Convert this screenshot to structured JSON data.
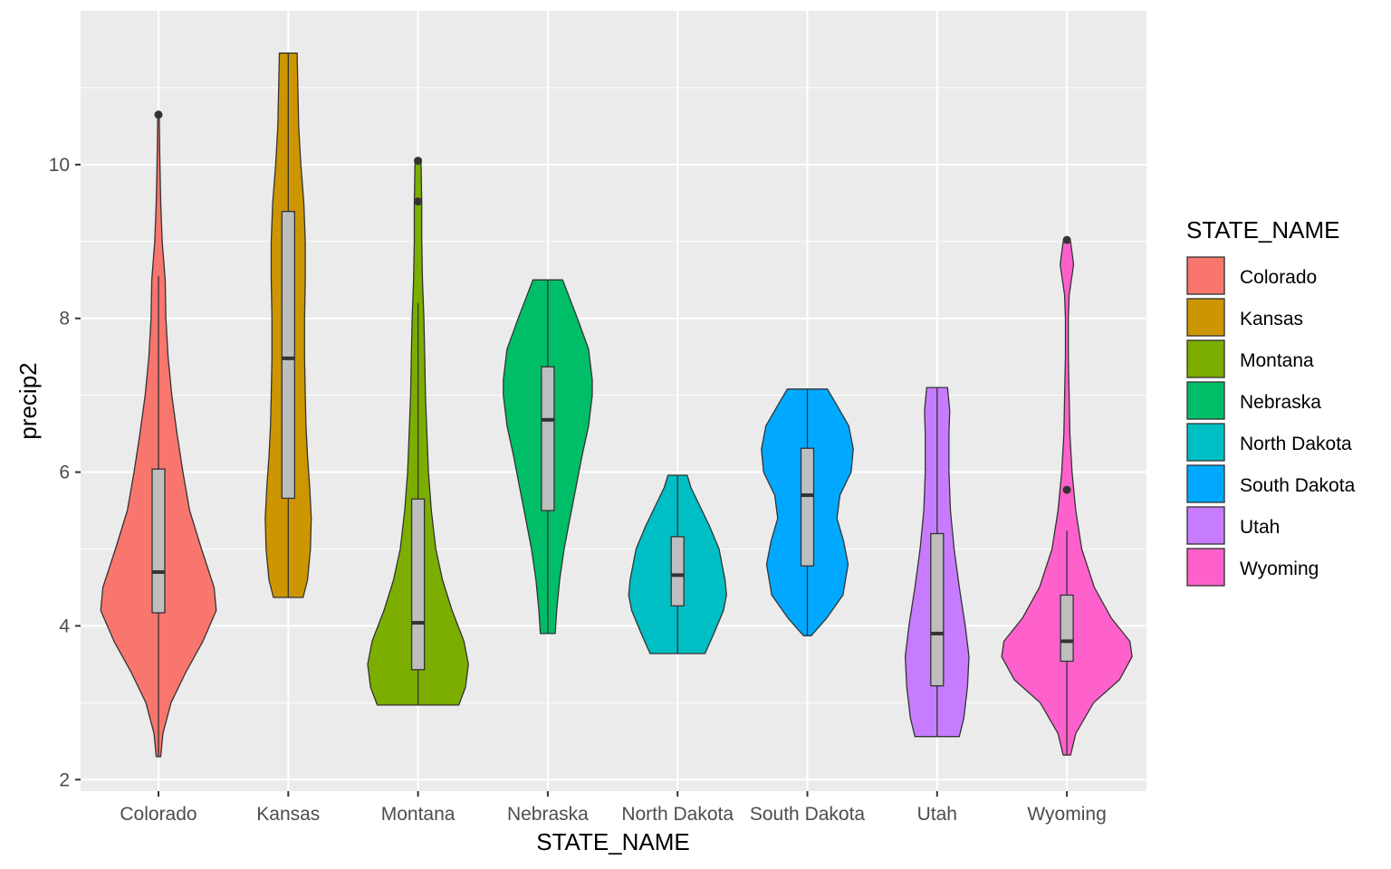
{
  "chart_data": {
    "type": "violin",
    "title": "",
    "xlabel": "STATE_NAME",
    "ylabel": "precip2",
    "ylim": [
      1.85,
      12.0
    ],
    "yticks": [
      2,
      4,
      6,
      8,
      10
    ],
    "grid": true,
    "legend": {
      "title": "STATE_NAME",
      "placement": "right",
      "entries": [
        "Colorado",
        "Kansas",
        "Montana",
        "Nebraska",
        "North Dakota",
        "South Dakota",
        "Utah",
        "Wyoming"
      ]
    },
    "categories": [
      "Colorado",
      "Kansas",
      "Montana",
      "Nebraska",
      "North Dakota",
      "South Dakota",
      "Utah",
      "Wyoming"
    ],
    "series": [
      {
        "category": "Colorado",
        "color": "#F8766D",
        "min": 2.3,
        "max": 10.65,
        "q1": 4.17,
        "median": 4.7,
        "q3": 6.04,
        "whisker_low": 2.3,
        "whisker_high": 8.55,
        "outliers": [
          10.65
        ],
        "density": [
          [
            2.3,
            0.03
          ],
          [
            2.6,
            0.06
          ],
          [
            3.0,
            0.17
          ],
          [
            3.4,
            0.37
          ],
          [
            3.8,
            0.6
          ],
          [
            4.2,
            0.78
          ],
          [
            4.5,
            0.75
          ],
          [
            5.0,
            0.58
          ],
          [
            5.5,
            0.42
          ],
          [
            6.0,
            0.33
          ],
          [
            6.5,
            0.25
          ],
          [
            7.0,
            0.18
          ],
          [
            7.5,
            0.13
          ],
          [
            8.0,
            0.1
          ],
          [
            8.5,
            0.09
          ],
          [
            9.0,
            0.05
          ],
          [
            9.5,
            0.03
          ],
          [
            10.0,
            0.02
          ],
          [
            10.65,
            0.01
          ]
        ]
      },
      {
        "category": "Kansas",
        "color": "#CD9600",
        "min": 4.37,
        "max": 11.45,
        "q1": 5.66,
        "median": 7.48,
        "q3": 9.39,
        "whisker_low": 4.37,
        "whisker_high": 11.45,
        "outliers": [],
        "density": [
          [
            4.37,
            0.2
          ],
          [
            4.6,
            0.26
          ],
          [
            5.0,
            0.3
          ],
          [
            5.4,
            0.31
          ],
          [
            5.8,
            0.29
          ],
          [
            6.2,
            0.26
          ],
          [
            6.6,
            0.24
          ],
          [
            7.0,
            0.23
          ],
          [
            7.5,
            0.22
          ],
          [
            8.0,
            0.22
          ],
          [
            8.5,
            0.23
          ],
          [
            9.0,
            0.23
          ],
          [
            9.5,
            0.21
          ],
          [
            10.0,
            0.17
          ],
          [
            10.5,
            0.14
          ],
          [
            11.0,
            0.13
          ],
          [
            11.45,
            0.12
          ]
        ]
      },
      {
        "category": "Montana",
        "color": "#7CAE00",
        "min": 2.97,
        "max": 10.05,
        "q1": 3.43,
        "median": 4.04,
        "q3": 5.65,
        "whisker_low": 2.97,
        "whisker_high": 8.2,
        "outliers": [
          9.52,
          10.05
        ],
        "density": [
          [
            2.97,
            0.55
          ],
          [
            3.2,
            0.64
          ],
          [
            3.5,
            0.68
          ],
          [
            3.8,
            0.62
          ],
          [
            4.2,
            0.46
          ],
          [
            4.6,
            0.33
          ],
          [
            5.0,
            0.24
          ],
          [
            5.5,
            0.18
          ],
          [
            6.0,
            0.14
          ],
          [
            6.5,
            0.12
          ],
          [
            7.0,
            0.1
          ],
          [
            7.5,
            0.09
          ],
          [
            8.0,
            0.08
          ],
          [
            8.5,
            0.06
          ],
          [
            9.0,
            0.05
          ],
          [
            9.5,
            0.05
          ],
          [
            10.05,
            0.04
          ]
        ]
      },
      {
        "category": "Nebraska",
        "color": "#00BE67",
        "min": 3.9,
        "max": 8.5,
        "q1": 5.5,
        "median": 6.68,
        "q3": 7.37,
        "whisker_low": 3.9,
        "whisker_high": 8.5,
        "outliers": [],
        "density": [
          [
            3.9,
            0.1
          ],
          [
            4.2,
            0.12
          ],
          [
            4.6,
            0.16
          ],
          [
            5.0,
            0.22
          ],
          [
            5.4,
            0.3
          ],
          [
            5.8,
            0.38
          ],
          [
            6.2,
            0.46
          ],
          [
            6.6,
            0.55
          ],
          [
            7.0,
            0.6
          ],
          [
            7.2,
            0.6
          ],
          [
            7.6,
            0.55
          ],
          [
            8.0,
            0.4
          ],
          [
            8.3,
            0.28
          ],
          [
            8.5,
            0.2
          ]
        ]
      },
      {
        "category": "North Dakota",
        "color": "#00BFC4",
        "min": 3.64,
        "max": 5.96,
        "q1": 4.26,
        "median": 4.66,
        "q3": 5.16,
        "whisker_low": 3.64,
        "whisker_high": 5.96,
        "outliers": [],
        "density": [
          [
            3.64,
            0.37
          ],
          [
            3.9,
            0.49
          ],
          [
            4.2,
            0.62
          ],
          [
            4.4,
            0.66
          ],
          [
            4.6,
            0.64
          ],
          [
            4.8,
            0.6
          ],
          [
            5.0,
            0.56
          ],
          [
            5.3,
            0.43
          ],
          [
            5.6,
            0.28
          ],
          [
            5.8,
            0.18
          ],
          [
            5.96,
            0.13
          ]
        ]
      },
      {
        "category": "South Dakota",
        "color": "#00A9FF",
        "min": 3.87,
        "max": 7.08,
        "q1": 4.78,
        "median": 5.7,
        "q3": 6.31,
        "whisker_low": 3.87,
        "whisker_high": 7.08,
        "outliers": [],
        "density": [
          [
            3.87,
            0.05
          ],
          [
            4.1,
            0.26
          ],
          [
            4.4,
            0.48
          ],
          [
            4.8,
            0.55
          ],
          [
            5.1,
            0.49
          ],
          [
            5.4,
            0.4
          ],
          [
            5.7,
            0.44
          ],
          [
            6.0,
            0.59
          ],
          [
            6.3,
            0.62
          ],
          [
            6.6,
            0.56
          ],
          [
            6.9,
            0.38
          ],
          [
            7.08,
            0.27
          ]
        ]
      },
      {
        "category": "Utah",
        "color": "#C77CFF",
        "min": 2.56,
        "max": 7.1,
        "q1": 3.22,
        "median": 3.9,
        "q3": 5.2,
        "whisker_low": 2.56,
        "whisker_high": 7.1,
        "outliers": [],
        "density": [
          [
            2.56,
            0.3
          ],
          [
            2.8,
            0.36
          ],
          [
            3.2,
            0.41
          ],
          [
            3.6,
            0.43
          ],
          [
            4.0,
            0.38
          ],
          [
            4.5,
            0.3
          ],
          [
            5.0,
            0.23
          ],
          [
            5.5,
            0.18
          ],
          [
            6.0,
            0.16
          ],
          [
            6.5,
            0.16
          ],
          [
            6.8,
            0.17
          ],
          [
            7.1,
            0.14
          ]
        ]
      },
      {
        "category": "Wyoming",
        "color": "#FF61CC",
        "min": 2.32,
        "max": 9.02,
        "q1": 3.54,
        "median": 3.8,
        "q3": 4.4,
        "whisker_low": 2.32,
        "whisker_high": 5.24,
        "outliers": [
          5.77,
          9.02
        ],
        "density": [
          [
            2.32,
            0.05
          ],
          [
            2.6,
            0.12
          ],
          [
            3.0,
            0.36
          ],
          [
            3.3,
            0.71
          ],
          [
            3.6,
            0.88
          ],
          [
            3.8,
            0.85
          ],
          [
            4.1,
            0.6
          ],
          [
            4.5,
            0.37
          ],
          [
            5.0,
            0.2
          ],
          [
            5.5,
            0.12
          ],
          [
            6.0,
            0.07
          ],
          [
            6.5,
            0.04
          ],
          [
            7.0,
            0.03
          ],
          [
            7.5,
            0.02
          ],
          [
            8.0,
            0.02
          ],
          [
            8.3,
            0.03
          ],
          [
            8.7,
            0.09
          ],
          [
            9.0,
            0.05
          ]
        ]
      }
    ]
  }
}
